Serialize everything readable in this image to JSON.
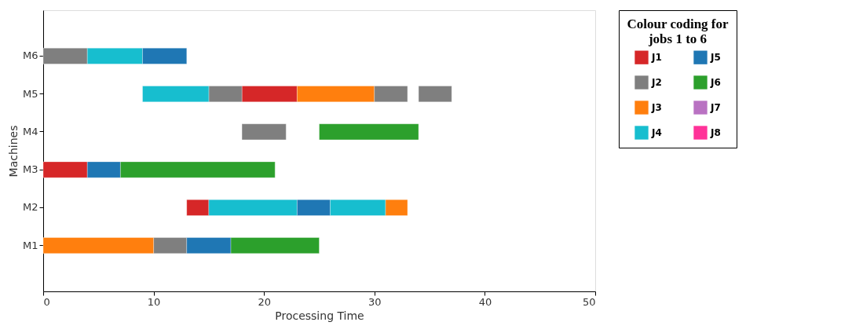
{
  "chart_data": {
    "type": "bar",
    "orientation": "horizontal",
    "xlabel": "Processing Time",
    "ylabel": "Machines",
    "categories": [
      "M6",
      "M5",
      "M4",
      "M3",
      "M2",
      "M1"
    ],
    "series": [
      {
        "name": "J1",
        "color": "#d62728",
        "base": [
          null,
          18,
          null,
          0,
          13,
          null
        ],
        "values": [
          null,
          5,
          null,
          4,
          2,
          null
        ]
      },
      {
        "name": "J2",
        "color": "#7f7f7f",
        "base": [
          0,
          15,
          18,
          null,
          null,
          10
        ],
        "values": [
          4,
          3,
          4,
          null,
          null,
          3
        ]
      },
      {
        "name": "J3",
        "color": "#ff7f0e",
        "base": [
          null,
          23,
          null,
          null,
          31,
          0
        ],
        "values": [
          null,
          7,
          null,
          null,
          2,
          10
        ]
      },
      {
        "name": "J4",
        "color": "#17becf",
        "base": [
          4,
          9,
          null,
          null,
          15,
          null
        ],
        "values": [
          5,
          6,
          null,
          null,
          8,
          null
        ]
      },
      {
        "name": "J5",
        "color": "#1f77b4",
        "base": [
          9,
          null,
          null,
          4,
          23,
          13
        ],
        "values": [
          4,
          null,
          null,
          3,
          3,
          4
        ]
      },
      {
        "name": "J6",
        "color": "#2ca02c",
        "base": [
          null,
          null,
          25,
          7,
          null,
          17
        ],
        "values": [
          null,
          null,
          9,
          14,
          null,
          8
        ]
      },
      {
        "name": "J7",
        "color": "#b972c2",
        "values": [
          null,
          null,
          null,
          null,
          null,
          null
        ]
      },
      {
        "name": "J8",
        "color": "#ff3399",
        "values": [
          null,
          null,
          null,
          null,
          null,
          null
        ]
      },
      {
        "color": "#7f7f7f",
        "base": [
          null,
          30,
          null,
          null,
          null,
          null
        ],
        "values": [
          null,
          3,
          null,
          null,
          null,
          null
        ]
      },
      {
        "color": "#7f7f7f",
        "base": [
          null,
          34,
          null,
          null,
          null,
          null
        ],
        "values": [
          null,
          3,
          null,
          null,
          null,
          null
        ]
      },
      {
        "color": "#17becf",
        "base": [
          null,
          null,
          null,
          null,
          26,
          null
        ],
        "values": [
          null,
          null,
          null,
          null,
          5,
          null
        ]
      }
    ],
    "xlim": [
      0,
      50
    ],
    "xticks": [
      0,
      10,
      20,
      30,
      40,
      50
    ],
    "legend": "right",
    "legend_title": "Colour coding for jobs 1 to 6"
  }
}
